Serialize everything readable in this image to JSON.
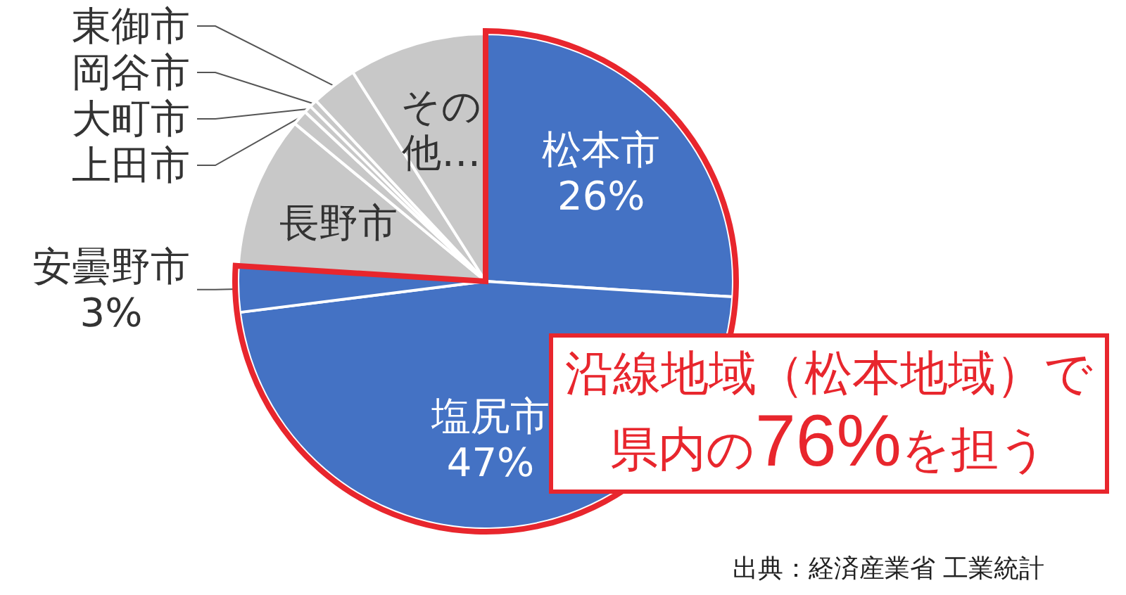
{
  "chart_data": {
    "type": "pie",
    "categories": [
      "松本市",
      "塩尻市",
      "安曇野市",
      "長野市",
      "上田市",
      "大町市",
      "岡谷市",
      "東御市",
      "その他…"
    ],
    "values": [
      26,
      47,
      3,
      10,
      1,
      0.5,
      0.5,
      3,
      9
    ],
    "colors": [
      "#4472c4",
      "#4472c4",
      "#4472c4",
      "#c8c8c8",
      "#c8c8c8",
      "#c8c8c8",
      "#c8c8c8",
      "#c8c8c8",
      "#c8c8c8"
    ],
    "value_labels": [
      "26%",
      "47%",
      "3%",
      null,
      null,
      null,
      null,
      null,
      null
    ],
    "annotations": [
      "沿線地域（松本地域）で県内の76%を担う",
      "出典：経済産業省 工業統計"
    ]
  }
}
